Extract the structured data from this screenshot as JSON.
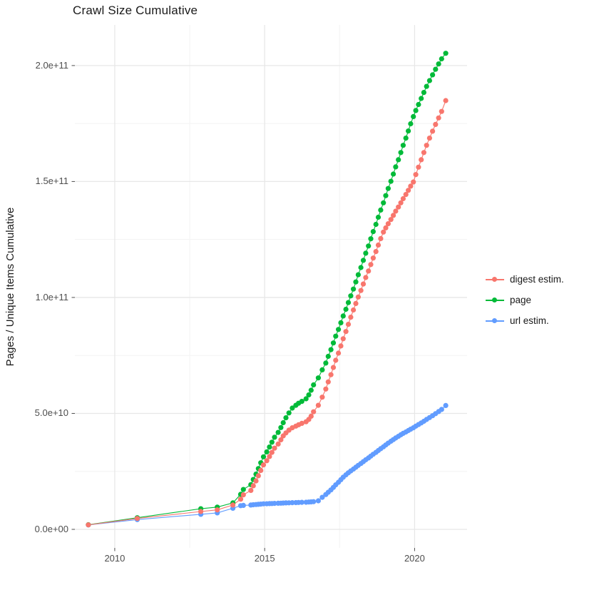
{
  "title": "Crawl Size Cumulative",
  "y_axis": {
    "label": "Pages / Unique Items Cumulative",
    "ticks": [
      "0.0e+00",
      "5.0e+10",
      "1.0e+11",
      "1.5e+11",
      "2.0e+11"
    ]
  },
  "x_axis": {
    "ticks": [
      "2010",
      "2015",
      "2020"
    ]
  },
  "legend": [
    {
      "label": "digest estim.",
      "color": "#F8766D"
    },
    {
      "label": "page",
      "color": "#00BA38"
    },
    {
      "label": "url estim.",
      "color": "#619CFF"
    }
  ],
  "colors": {
    "grid_major": "#E7E7E7",
    "grid_minor": "#F3F3F3",
    "tick": "#4d4d4d"
  },
  "chart_data": {
    "type": "scatter",
    "title": "Crawl Size Cumulative",
    "xlabel": "",
    "ylabel": "Pages / Unique Items Cumulative",
    "grid": true,
    "legend_position": "right",
    "xlim": [
      2008.67,
      2021.75
    ],
    "ylim": [
      -8000000000.0,
      217500000000.0
    ],
    "x_major": [
      2010,
      2015,
      2020
    ],
    "x_minor": [
      2012.5,
      2017.5
    ],
    "y_major": [
      0,
      50000000000.0,
      100000000000.0,
      150000000000.0,
      200000000000.0
    ],
    "y_minor": [
      25000000000.0,
      75000000000.0,
      125000000000.0,
      175000000000.0
    ],
    "x": [
      2009.12,
      2010.75,
      2012.87,
      2013.42,
      2013.94,
      2014.2,
      2014.29,
      2014.54,
      2014.62,
      2014.71,
      2014.79,
      2014.87,
      2014.96,
      2015.07,
      2015.16,
      2015.24,
      2015.33,
      2015.45,
      2015.54,
      2015.62,
      2015.71,
      2015.81,
      2015.92,
      2016.04,
      2016.13,
      2016.24,
      2016.38,
      2016.47,
      2016.55,
      2016.63,
      2016.79,
      2016.92,
      2017.04,
      2017.12,
      2017.21,
      2017.29,
      2017.37,
      2017.46,
      2017.54,
      2017.62,
      2017.71,
      2017.79,
      2017.87,
      2017.96,
      2018.04,
      2018.12,
      2018.21,
      2018.29,
      2018.37,
      2018.46,
      2018.54,
      2018.62,
      2018.71,
      2018.79,
      2018.87,
      2018.96,
      2019.04,
      2019.12,
      2019.21,
      2019.29,
      2019.37,
      2019.46,
      2019.54,
      2019.62,
      2019.71,
      2019.79,
      2019.87,
      2019.96,
      2020.04,
      2020.13,
      2020.22,
      2020.31,
      2020.4,
      2020.5,
      2020.6,
      2020.7,
      2020.8,
      2020.9,
      2021.04
    ],
    "series": [
      {
        "name": "digest estim.",
        "color": "#F8766D",
        "values": [
          1950000000.0,
          4700000000.0,
          7700000000.0,
          8400000000.0,
          10500000000.0,
          13000000000.0,
          14900000000.0,
          16800000000.0,
          18800000000.0,
          20900000000.0,
          23100000000.0,
          25400000000.0,
          27800000000.0,
          29600000000.0,
          31400000000.0,
          33200000000.0,
          35000000000.0,
          36800000000.0,
          38600000000.0,
          40300000000.0,
          41600000000.0,
          42800000000.0,
          43800000000.0,
          44500000000.0,
          45100000000.0,
          45700000000.0,
          46400000000.0,
          47400000000.0,
          48800000000.0,
          50700000000.0,
          53500000000.0,
          57000000000.0,
          60500000000.0,
          63600000000.0,
          66700000000.0,
          69800000000.0,
          72900000000.0,
          76000000000.0,
          79100000000.0,
          82200000000.0,
          85300000000.0,
          88400000000.0,
          91500000000.0,
          94600000000.0,
          97400000000.0,
          100200000000.0,
          103000000000.0,
          105800000000.0,
          108600000000.0,
          111400000000.0,
          114200000000.0,
          117000000000.0,
          119800000000.0,
          122600000000.0,
          125400000000.0,
          128200000000.0,
          130000000000.0,
          131800000000.0,
          133600000000.0,
          135400000000.0,
          137200000000.0,
          139000000000.0,
          140800000000.0,
          142600000000.0,
          144400000000.0,
          146200000000.0,
          148000000000.0,
          149800000000.0,
          153000000000.0,
          156200000000.0,
          159400000000.0,
          162500000000.0,
          165600000000.0,
          168700000000.0,
          171700000000.0,
          174600000000.0,
          177400000000.0,
          180200000000.0,
          184900000000.0
        ]
      },
      {
        "name": "page",
        "color": "#00BA38",
        "values": [
          2000000000.0,
          5000000000.0,
          8900000000.0,
          9600000000.0,
          11400000000.0,
          15100000000.0,
          17200000000.0,
          19300000000.0,
          21500000000.0,
          23800000000.0,
          26200000000.0,
          28700000000.0,
          31300000000.0,
          33400000000.0,
          35500000000.0,
          37600000000.0,
          39700000000.0,
          41800000000.0,
          43900000000.0,
          46000000000.0,
          48100000000.0,
          50200000000.0,
          52300000000.0,
          53500000000.0,
          54400000000.0,
          55200000000.0,
          56300000000.0,
          58000000000.0,
          60000000000.0,
          62300000000.0,
          65300000000.0,
          68800000000.0,
          71700000000.0,
          74600000000.0,
          77500000000.0,
          80400000000.0,
          83300000000.0,
          86200000000.0,
          89100000000.0,
          92000000000.0,
          94900000000.0,
          97800000000.0,
          100700000000.0,
          103600000000.0,
          106700000000.0,
          109800000000.0,
          112900000000.0,
          116000000000.0,
          119100000000.0,
          122200000000.0,
          125300000000.0,
          128400000000.0,
          131500000000.0,
          134600000000.0,
          137700000000.0,
          140800000000.0,
          143900000000.0,
          147000000000.0,
          150100000000.0,
          153200000000.0,
          156300000000.0,
          159400000000.0,
          162500000000.0,
          165600000000.0,
          168700000000.0,
          171800000000.0,
          174900000000.0,
          178000000000.0,
          180600000000.0,
          183200000000.0,
          185800000000.0,
          188400000000.0,
          191000000000.0,
          193500000000.0,
          196000000000.0,
          198400000000.0,
          200700000000.0,
          202900000000.0,
          205300000000.0
        ]
      },
      {
        "name": "url estim.",
        "color": "#619CFF",
        "values": [
          1900000000.0,
          4200000000.0,
          6500000000.0,
          7100000000.0,
          9100000000.0,
          10200000000.0,
          10350000000.0,
          10500000000.0,
          10600000000.0,
          10700000000.0,
          10800000000.0,
          10900000000.0,
          11000000000.0,
          11050000000.0,
          11100000000.0,
          11150000000.0,
          11200000000.0,
          11250000000.0,
          11300000000.0,
          11350000000.0,
          11400000000.0,
          11450000000.0,
          11500000000.0,
          11550000000.0,
          11600000000.0,
          11650000000.0,
          11700000000.0,
          11780000000.0,
          11850000000.0,
          11950000000.0,
          12300000000.0,
          13800000000.0,
          15000000000.0,
          16000000000.0,
          17000000000.0,
          18100000000.0,
          19200000000.0,
          20300000000.0,
          21400000000.0,
          22500000000.0,
          23500000000.0,
          24400000000.0,
          25200000000.0,
          26000000000.0,
          26800000000.0,
          27600000000.0,
          28400000000.0,
          29200000000.0,
          30000000000.0,
          30800000000.0,
          31600000000.0,
          32400000000.0,
          33200000000.0,
          34000000000.0,
          34800000000.0,
          35600000000.0,
          36400000000.0,
          37200000000.0,
          38000000000.0,
          38700000000.0,
          39400000000.0,
          40100000000.0,
          40800000000.0,
          41400000000.0,
          42000000000.0,
          42600000000.0,
          43200000000.0,
          43800000000.0,
          44500000000.0,
          45200000000.0,
          45900000000.0,
          46600000000.0,
          47400000000.0,
          48200000000.0,
          49000000000.0,
          49900000000.0,
          50800000000.0,
          51700000000.0,
          53400000000.0
        ]
      }
    ]
  }
}
